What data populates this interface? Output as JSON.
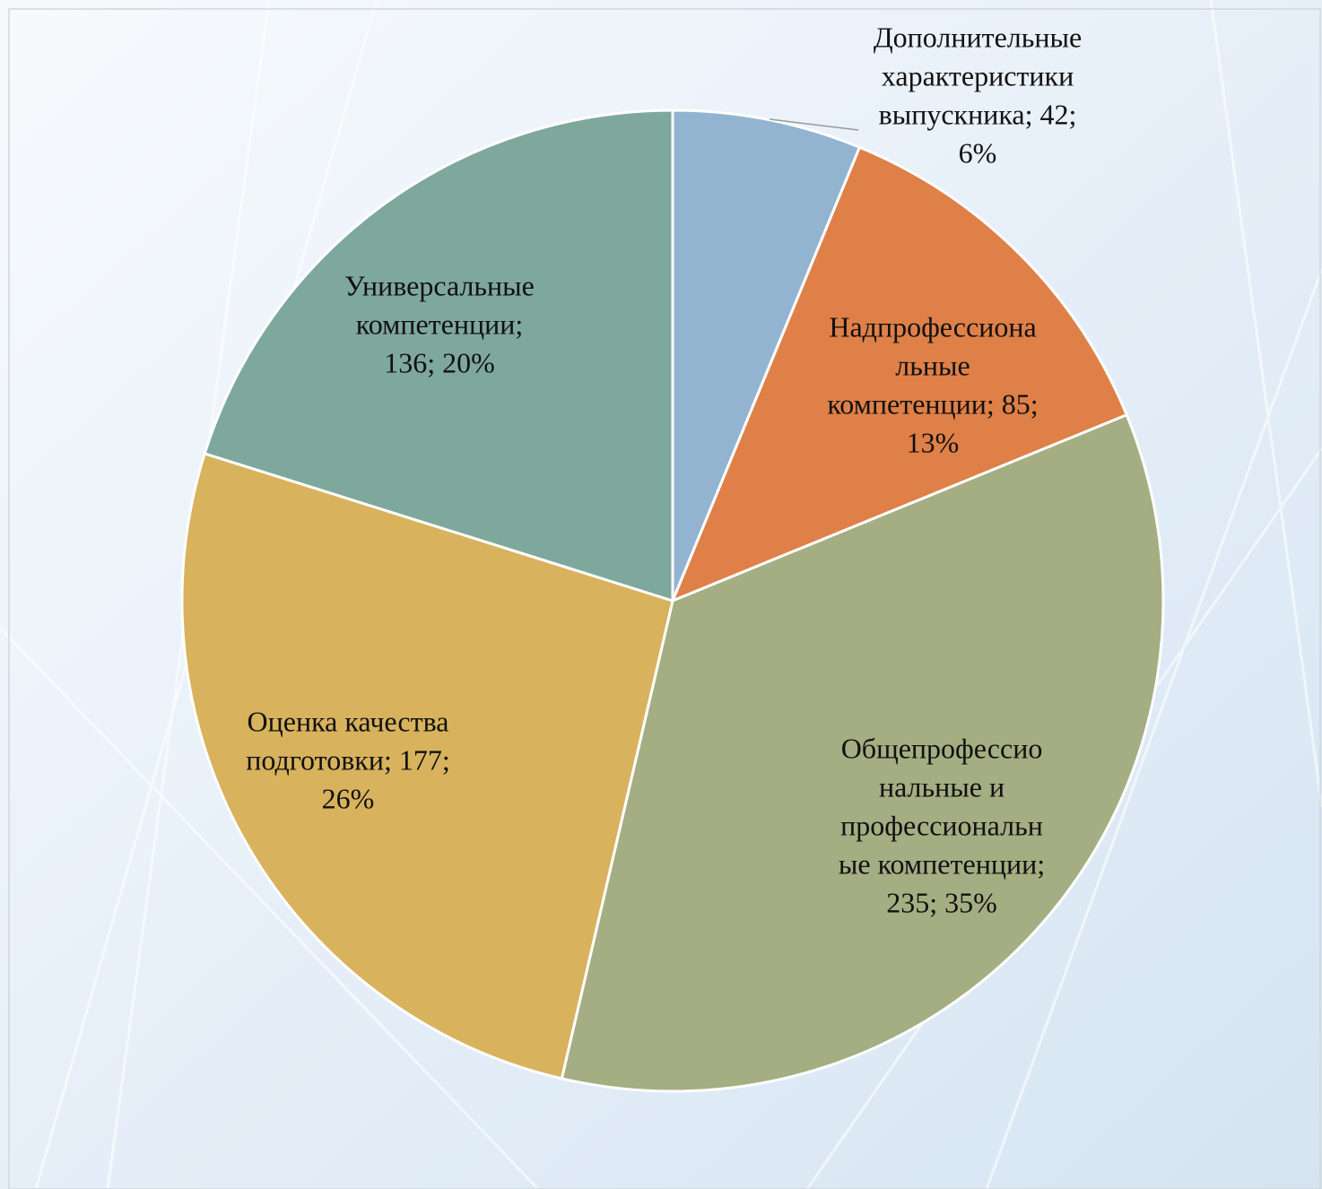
{
  "chart_data": {
    "type": "pie",
    "values": [
      42,
      85,
      235,
      177,
      136
    ],
    "value_labels": [
      [
        "Дополнительные",
        "характеристики",
        "выпускника; 42;",
        "6%"
      ],
      [
        "Надпрофессиона",
        "льные",
        "компетенции; 85;",
        "13%"
      ],
      [
        "Общепрофессио",
        "нальные и",
        "профессиональн",
        "ые компетенции;",
        "235; 35%"
      ],
      [
        "Оценка качества",
        "подготовки; 177;",
        "26%"
      ],
      [
        "Универсальные",
        "компетенции;",
        "136; 20%"
      ]
    ],
    "colors": [
      "#93b4d1",
      "#df8048",
      "#a5ad82",
      "#d8b25d",
      "#7fa89c"
    ]
  }
}
